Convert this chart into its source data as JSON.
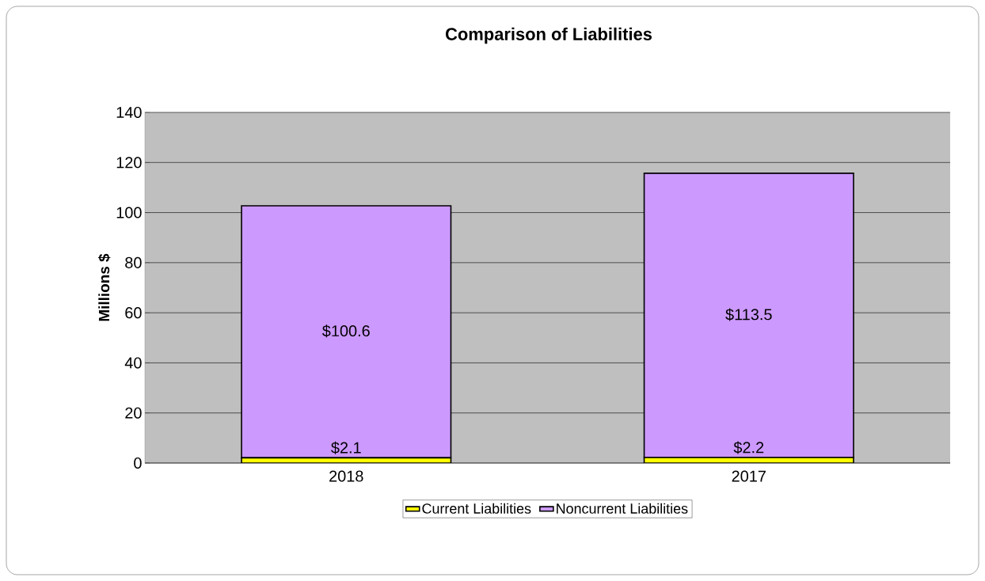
{
  "chart_data": {
    "type": "bar",
    "title": "Comparison of Liabilities",
    "ylabel": "Millions $",
    "categories": [
      "2018",
      "2017"
    ],
    "stacked": true,
    "series": [
      {
        "name": "Current Liabilities",
        "color": "#ffff00",
        "values": [
          2.1,
          2.2
        ],
        "value_labels": [
          "$2.1",
          "$2.2"
        ]
      },
      {
        "name": "Noncurrent Liabilities",
        "color": "#cc99ff",
        "values": [
          100.6,
          113.5
        ],
        "value_labels": [
          "$100.6",
          "$113.5"
        ]
      }
    ],
    "ylim": [
      0,
      140
    ],
    "yticks": [
      0,
      20,
      40,
      60,
      80,
      100,
      120,
      140
    ],
    "grid": "y",
    "legend": "bottom"
  }
}
